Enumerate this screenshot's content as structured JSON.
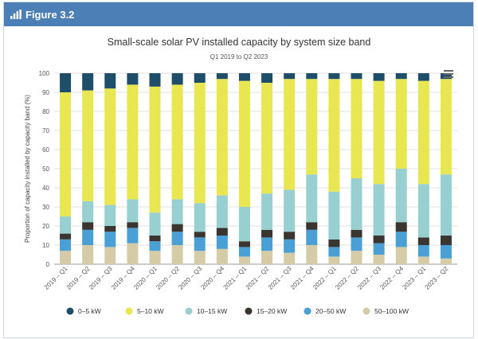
{
  "header": {
    "title": "Figure 3.2",
    "icon": "bar-chart-icon"
  },
  "colors": {
    "header_bg": "#4c7fb5",
    "series": [
      "#1f4e6b",
      "#e8e651",
      "#98cfd0",
      "#3a3530",
      "#4a9fd4",
      "#d5cba7"
    ]
  },
  "chart_data": {
    "type": "bar",
    "stacked": true,
    "title": "Small-scale solar PV installed capacity by system size band",
    "subtitle": "Q1 2019 to Q2 2023",
    "xlabel": "",
    "ylabel": "Proportion of capacity installed by capacity band (%)",
    "ylim": [
      0,
      100
    ],
    "yticks": [
      0,
      10,
      20,
      30,
      40,
      50,
      60,
      70,
      80,
      90,
      100
    ],
    "grid": true,
    "legend_position": "bottom",
    "categories": [
      "2019 – Q1",
      "2019 – Q2",
      "2019 – Q3",
      "2019 – Q4",
      "2020 – Q1",
      "2020 – Q2",
      "2020 – Q3",
      "2020 – Q4",
      "2021 – Q1",
      "2021 – Q2",
      "2021 – Q3",
      "2021 – Q4",
      "2022 – Q1",
      "2022 – Q2",
      "2022 – Q3",
      "2022 – Q4",
      "2023 – Q1",
      "2023 – Q2"
    ],
    "series": [
      {
        "name": "50–100 kW",
        "values": [
          7,
          10,
          9,
          11,
          7,
          10,
          7,
          8,
          4,
          7,
          6,
          10,
          4,
          7,
          5,
          9,
          4,
          3
        ]
      },
      {
        "name": "20–50 kW",
        "values": [
          6,
          8,
          8,
          8,
          5,
          7,
          7,
          7,
          5,
          7,
          7,
          8,
          5,
          7,
          6,
          8,
          6,
          7
        ]
      },
      {
        "name": "15–20 kW",
        "values": [
          3,
          4,
          3,
          3,
          3,
          4,
          3,
          4,
          3,
          4,
          4,
          4,
          4,
          4,
          4,
          5,
          4,
          5
        ]
      },
      {
        "name": "10–15 kW",
        "values": [
          9,
          11,
          11,
          12,
          12,
          13,
          15,
          17,
          18,
          19,
          22,
          25,
          25,
          27,
          27,
          28,
          28,
          32
        ]
      },
      {
        "name": "5–10 kW",
        "values": [
          65,
          58,
          61,
          60,
          66,
          60,
          63,
          61,
          66,
          58,
          58,
          50,
          59,
          52,
          54,
          47,
          54,
          50
        ]
      },
      {
        "name": "0–5 kW",
        "values": [
          10,
          9,
          8,
          6,
          7,
          6,
          5,
          3,
          4,
          5,
          3,
          3,
          3,
          3,
          4,
          3,
          4,
          3
        ]
      }
    ],
    "legend_order": [
      "0–5 kW",
      "5–10 kW",
      "10–15 kW",
      "15–20 kW",
      "20–50 kW",
      "50–100 kW"
    ]
  }
}
